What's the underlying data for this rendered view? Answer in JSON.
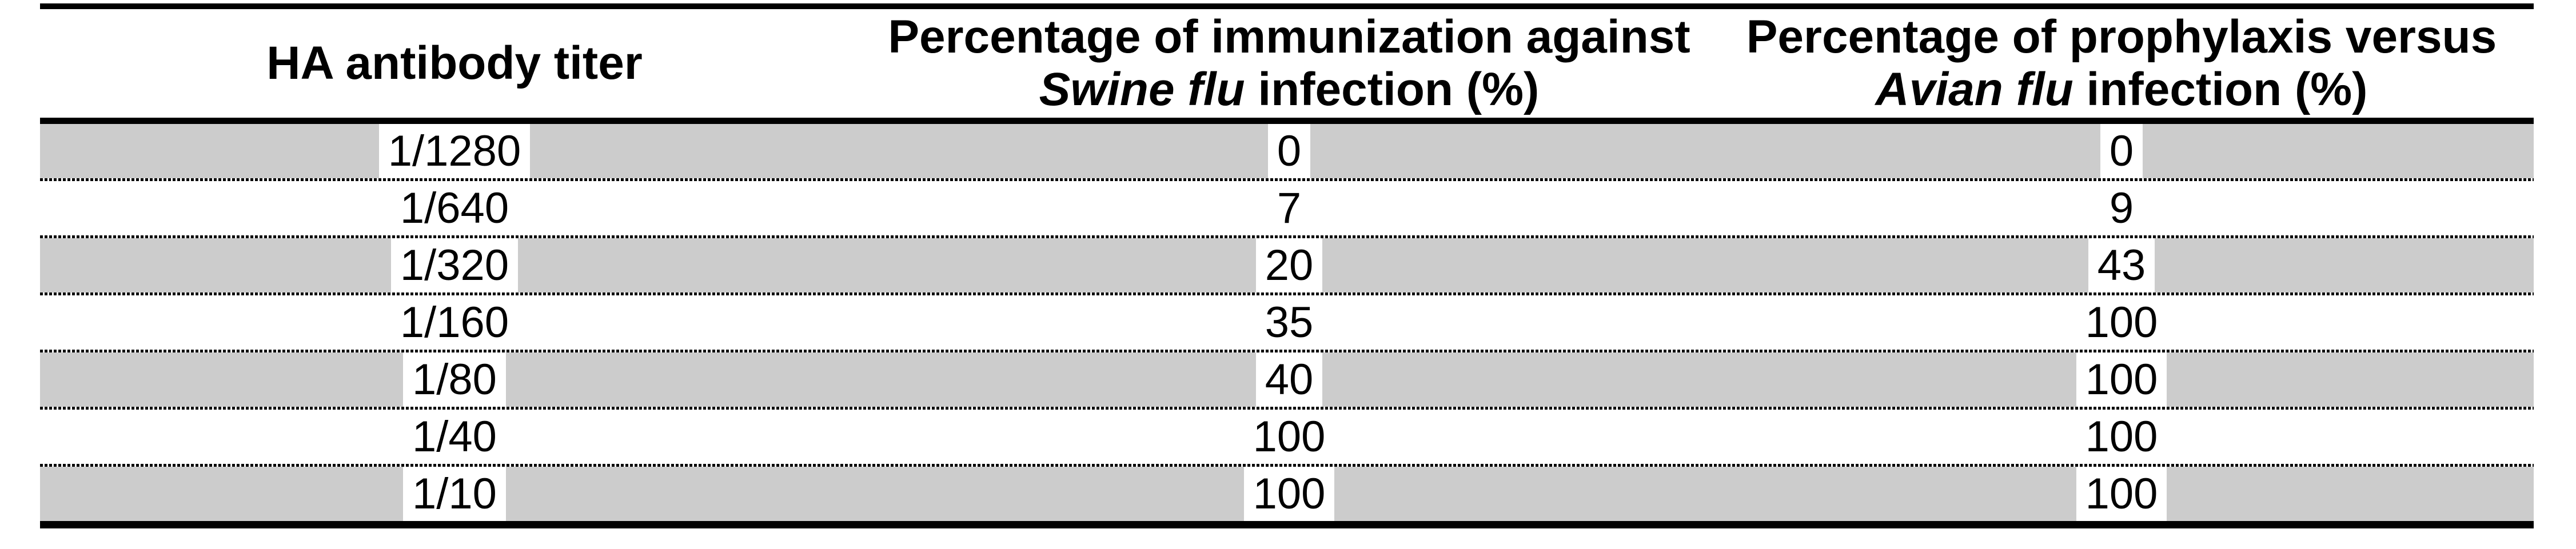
{
  "table": {
    "columns": [
      {
        "line1": "HA antibody titer",
        "italic": "",
        "line2_rest": ""
      },
      {
        "line1": "Percentage of immunization against",
        "italic": "Swine flu",
        "line2_rest": " infection (%)"
      },
      {
        "line1": "Percentage of prophylaxis versus",
        "italic": "Avian flu",
        "line2_rest": " infection (%)"
      }
    ],
    "rows": [
      {
        "titer": "1/1280",
        "swine": "0",
        "avian": "0"
      },
      {
        "titer": "1/640",
        "swine": "7",
        "avian": "9"
      },
      {
        "titer": "1/320",
        "swine": "20",
        "avian": "43"
      },
      {
        "titer": "1/160",
        "swine": "35",
        "avian": "100"
      },
      {
        "titer": "1/80",
        "swine": "40",
        "avian": "100"
      },
      {
        "titer": "1/40",
        "swine": "100",
        "avian": "100"
      },
      {
        "titer": "1/10",
        "swine": "100",
        "avian": "100"
      }
    ]
  },
  "colors": {
    "row_shade": "#cccccc",
    "rule": "#000000",
    "background": "#ffffff"
  },
  "chart_data": {
    "type": "table",
    "title": "",
    "columns": [
      "HA antibody titer",
      "Percentage of immunization against Swine flu infection (%)",
      "Percentage of prophylaxis versus Avian flu infection (%)"
    ],
    "categories": [
      "1/1280",
      "1/640",
      "1/320",
      "1/160",
      "1/80",
      "1/40",
      "1/10"
    ],
    "series": [
      {
        "name": "Percentage of immunization against Swine flu infection (%)",
        "values": [
          0,
          7,
          20,
          35,
          40,
          100,
          100
        ]
      },
      {
        "name": "Percentage of prophylaxis versus Avian flu infection (%)",
        "values": [
          0,
          9,
          43,
          100,
          100,
          100,
          100
        ]
      }
    ],
    "layout_hints": {
      "shaded_rows": [
        0,
        2,
        4,
        6
      ],
      "grid": "dashed-row-separators",
      "legend_position": "none"
    }
  }
}
